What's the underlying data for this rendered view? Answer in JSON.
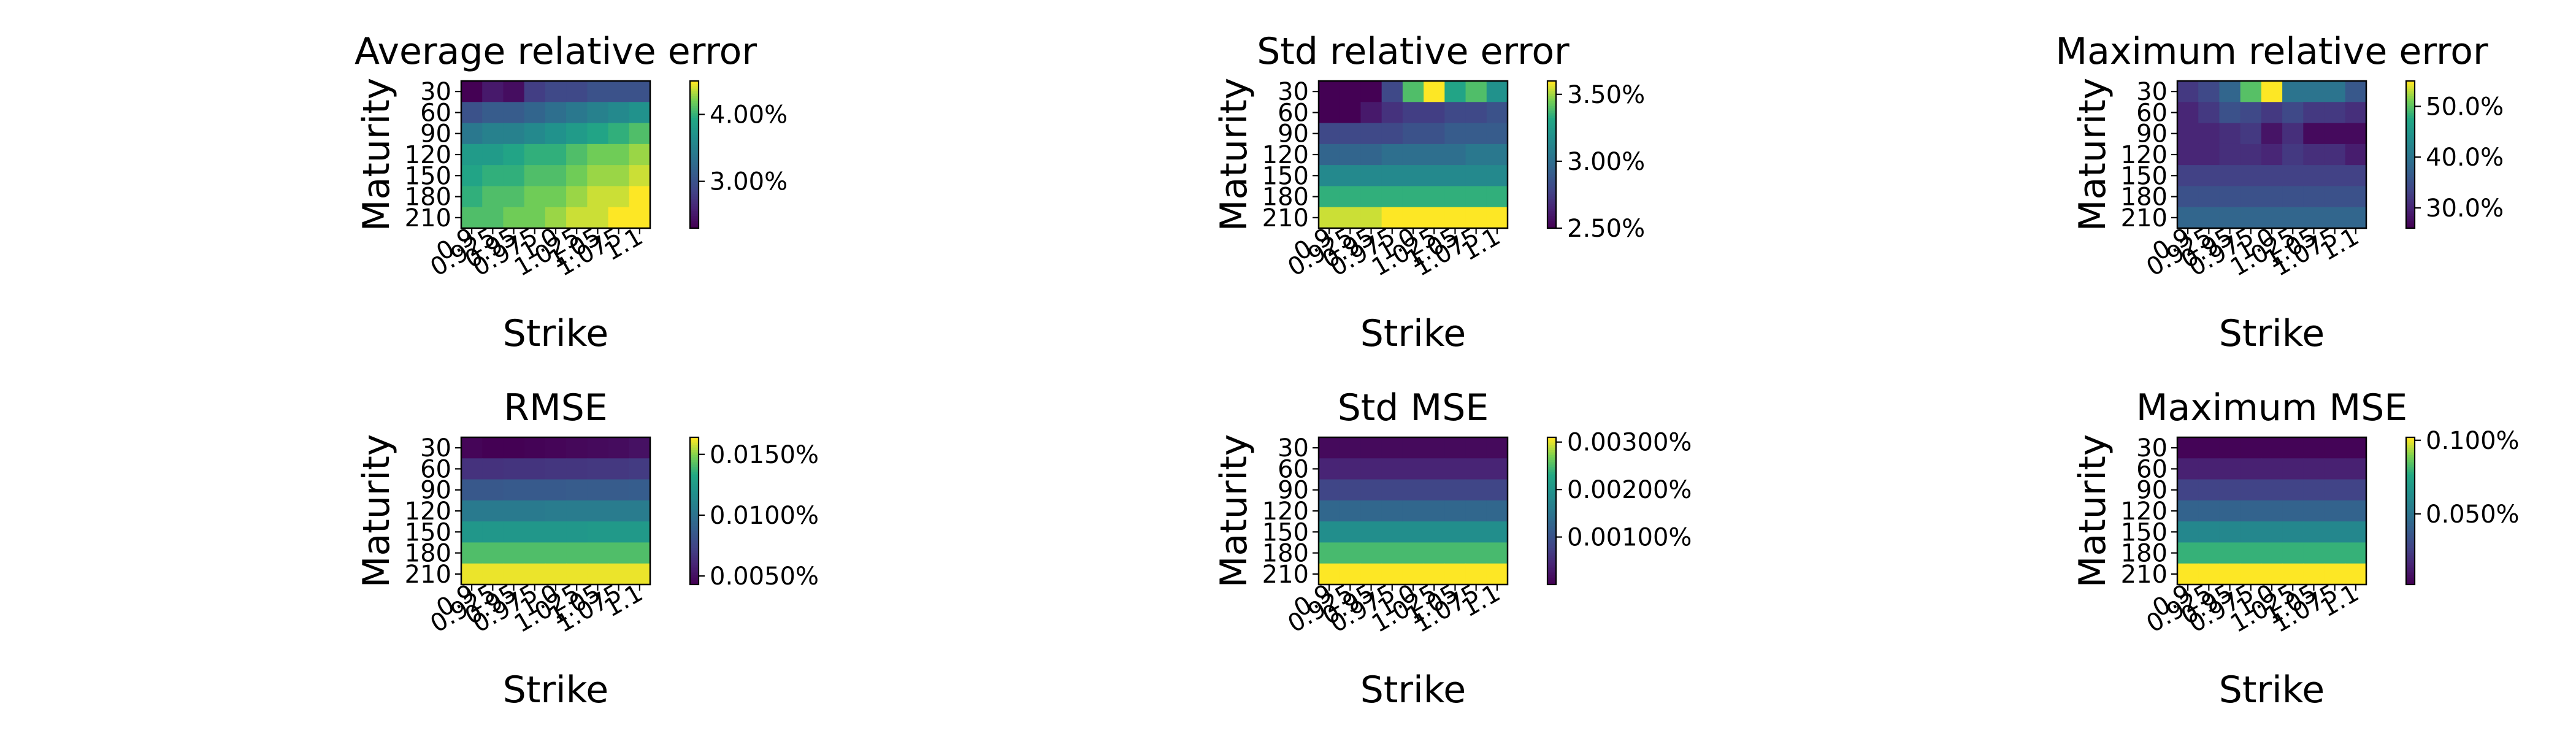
{
  "chart_data": [
    {
      "type": "heatmap",
      "title": "Average relative error",
      "xlabel": "Strike",
      "ylabel": "Maturity",
      "x": [
        "0.9",
        "0.925",
        "0.95",
        "0.975",
        "1.0",
        "1.025",
        "1.05",
        "1.075",
        "1.1"
      ],
      "y": [
        "30",
        "60",
        "90",
        "120",
        "150",
        "180",
        "210"
      ],
      "values": [
        [
          2.3,
          2.5,
          2.4,
          2.8,
          2.9,
          2.9,
          3.0,
          3.0,
          3.0
        ],
        [
          3.0,
          3.1,
          3.1,
          3.2,
          3.3,
          3.4,
          3.5,
          3.6,
          3.7
        ],
        [
          3.4,
          3.5,
          3.5,
          3.6,
          3.7,
          3.8,
          3.9,
          4.0,
          4.1
        ],
        [
          3.8,
          3.8,
          3.9,
          4.0,
          4.0,
          4.1,
          4.2,
          4.2,
          4.3
        ],
        [
          3.9,
          4.0,
          4.0,
          4.1,
          4.1,
          4.2,
          4.3,
          4.3,
          4.4
        ],
        [
          4.0,
          4.1,
          4.1,
          4.2,
          4.2,
          4.3,
          4.4,
          4.4,
          4.5
        ],
        [
          4.1,
          4.1,
          4.2,
          4.2,
          4.3,
          4.4,
          4.4,
          4.5,
          4.5
        ]
      ],
      "colorbar": {
        "range": [
          2.3,
          4.5
        ],
        "ticks": [
          3.0,
          4.0
        ],
        "tick_labels": [
          "3.00%",
          "4.00%"
        ]
      },
      "colormap": "viridis"
    },
    {
      "type": "heatmap",
      "title": "Std relative error",
      "xlabel": "Strike",
      "ylabel": "Maturity",
      "x": [
        "0.9",
        "0.925",
        "0.95",
        "0.975",
        "1.0",
        "1.025",
        "1.05",
        "1.075",
        "1.1"
      ],
      "y": [
        "30",
        "60",
        "90",
        "120",
        "150",
        "180",
        "210"
      ],
      "values": [
        [
          2.45,
          2.45,
          2.5,
          2.8,
          3.4,
          3.6,
          3.3,
          3.4,
          3.2
        ],
        [
          2.5,
          2.5,
          2.6,
          2.7,
          2.75,
          2.75,
          2.8,
          2.8,
          2.85
        ],
        [
          2.8,
          2.8,
          2.8,
          2.8,
          2.85,
          2.85,
          2.9,
          2.9,
          2.9
        ],
        [
          2.95,
          2.95,
          2.95,
          3.0,
          3.0,
          3.0,
          3.0,
          3.05,
          3.05
        ],
        [
          3.15,
          3.15,
          3.15,
          3.15,
          3.15,
          3.15,
          3.15,
          3.15,
          3.15
        ],
        [
          3.35,
          3.35,
          3.35,
          3.35,
          3.35,
          3.35,
          3.35,
          3.35,
          3.35
        ],
        [
          3.55,
          3.55,
          3.55,
          3.6,
          3.6,
          3.6,
          3.6,
          3.6,
          3.6
        ]
      ],
      "colorbar": {
        "range": [
          2.5,
          3.6
        ],
        "ticks": [
          2.5,
          3.0,
          3.5
        ],
        "tick_labels": [
          "2.50%",
          "3.00%",
          "3.50%"
        ]
      },
      "colormap": "viridis"
    },
    {
      "type": "heatmap",
      "title": "Maximum relative error",
      "xlabel": "Strike",
      "ylabel": "Maturity",
      "x": [
        "0.9",
        "0.925",
        "0.95",
        "0.975",
        "1.0",
        "1.025",
        "1.05",
        "1.075",
        "1.1"
      ],
      "y": [
        "30",
        "60",
        "90",
        "120",
        "150",
        "180",
        "210"
      ],
      "values": [
        [
          32,
          34,
          38,
          50,
          55,
          40,
          40,
          40,
          36
        ],
        [
          30,
          32,
          35,
          34,
          32,
          34,
          32,
          32,
          31
        ],
        [
          30,
          30,
          31,
          32,
          28,
          31,
          27,
          27,
          27
        ],
        [
          30,
          30,
          31,
          31,
          30,
          32,
          31,
          31,
          29
        ],
        [
          33,
          33,
          33,
          33,
          33,
          33,
          33,
          33,
          33
        ],
        [
          35,
          35,
          35,
          35,
          35,
          35,
          35,
          35,
          35
        ],
        [
          38,
          38,
          38,
          38,
          38,
          38,
          38,
          38,
          38
        ]
      ],
      "colorbar": {
        "range": [
          26,
          55
        ],
        "ticks": [
          30,
          40,
          50
        ],
        "tick_labels": [
          "30.0%",
          "40.0%",
          "50.0%"
        ]
      },
      "colormap": "viridis"
    },
    {
      "type": "heatmap",
      "title": "RMSE",
      "xlabel": "Strike",
      "ylabel": "Maturity",
      "x": [
        "0.9",
        "0.925",
        "0.95",
        "0.975",
        "1.0",
        "1.025",
        "1.05",
        "1.075",
        "1.1"
      ],
      "y": [
        "30",
        "60",
        "90",
        "120",
        "150",
        "180",
        "210"
      ],
      "values": [
        [
          0.0045,
          0.0043,
          0.0043,
          0.0044,
          0.0045,
          0.0046,
          0.0047,
          0.0048,
          0.005
        ],
        [
          0.0065,
          0.0065,
          0.0066,
          0.0066,
          0.0067,
          0.0067,
          0.0068,
          0.0068,
          0.0069
        ],
        [
          0.0085,
          0.0085,
          0.0086,
          0.0086,
          0.0086,
          0.0087,
          0.0087,
          0.0087,
          0.0088
        ],
        [
          0.0105,
          0.0105,
          0.0105,
          0.0105,
          0.0106,
          0.0106,
          0.0106,
          0.0106,
          0.0106
        ],
        [
          0.0123,
          0.0123,
          0.0123,
          0.0123,
          0.0123,
          0.0123,
          0.0124,
          0.0124,
          0.0124
        ],
        [
          0.0142,
          0.0142,
          0.0142,
          0.0142,
          0.0142,
          0.0142,
          0.0142,
          0.0142,
          0.0142
        ],
        [
          0.0162,
          0.0162,
          0.0162,
          0.0162,
          0.0162,
          0.0162,
          0.0162,
          0.0162,
          0.0162
        ]
      ],
      "colorbar": {
        "range": [
          0.0043,
          0.0164
        ],
        "ticks": [
          0.005,
          0.01,
          0.015
        ],
        "tick_labels": [
          "0.0050%",
          "0.0100%",
          "0.0150%"
        ]
      },
      "colormap": "viridis"
    },
    {
      "type": "heatmap",
      "title": "Std MSE",
      "xlabel": "Strike",
      "ylabel": "Maturity",
      "x": [
        "0.9",
        "0.925",
        "0.95",
        "0.975",
        "1.0",
        "1.025",
        "1.05",
        "1.075",
        "1.1"
      ],
      "y": [
        "30",
        "60",
        "90",
        "120",
        "150",
        "180",
        "210"
      ],
      "values": [
        [
          0.0001,
          0.0001,
          0.0001,
          0.0001,
          0.0001,
          0.0001,
          0.0001,
          0.0001,
          0.0001
        ],
        [
          0.0004,
          0.0004,
          0.0004,
          0.0004,
          0.0004,
          0.0004,
          0.0004,
          0.0004,
          0.0004
        ],
        [
          0.0008,
          0.0008,
          0.0008,
          0.0008,
          0.0008,
          0.0008,
          0.0008,
          0.0008,
          0.0008
        ],
        [
          0.0013,
          0.0013,
          0.0013,
          0.0013,
          0.0013,
          0.0013,
          0.0013,
          0.0013,
          0.0013
        ],
        [
          0.0019,
          0.0019,
          0.0019,
          0.0019,
          0.0019,
          0.0019,
          0.0019,
          0.0019,
          0.0019
        ],
        [
          0.0025,
          0.0025,
          0.0025,
          0.0025,
          0.0025,
          0.0025,
          0.0025,
          0.0025,
          0.0025
        ],
        [
          0.0031,
          0.0031,
          0.0031,
          0.0031,
          0.0031,
          0.0031,
          0.0031,
          0.0031,
          0.0031
        ]
      ],
      "colorbar": {
        "range": [
          0.0,
          0.0031
        ],
        "ticks": [
          0.001,
          0.002,
          0.003
        ],
        "tick_labels": [
          "0.00100%",
          "0.00200%",
          "0.00300%"
        ]
      },
      "colormap": "viridis"
    },
    {
      "type": "heatmap",
      "title": "Maximum MSE",
      "xlabel": "Strike",
      "ylabel": "Maturity",
      "x": [
        "0.9",
        "0.925",
        "0.95",
        "0.975",
        "1.0",
        "1.025",
        "1.05",
        "1.075",
        "1.1"
      ],
      "y": [
        "30",
        "60",
        "90",
        "120",
        "150",
        "180",
        "210"
      ],
      "values": [
        [
          0.003,
          0.003,
          0.003,
          0.003,
          0.003,
          0.003,
          0.003,
          0.003,
          0.003
        ],
        [
          0.014,
          0.014,
          0.014,
          0.014,
          0.014,
          0.014,
          0.014,
          0.014,
          0.014
        ],
        [
          0.027,
          0.027,
          0.027,
          0.027,
          0.027,
          0.027,
          0.027,
          0.027,
          0.027
        ],
        [
          0.042,
          0.042,
          0.042,
          0.042,
          0.042,
          0.042,
          0.042,
          0.042,
          0.042
        ],
        [
          0.06,
          0.06,
          0.06,
          0.06,
          0.06,
          0.06,
          0.06,
          0.06,
          0.06
        ],
        [
          0.08,
          0.08,
          0.08,
          0.08,
          0.08,
          0.08,
          0.08,
          0.08,
          0.08
        ],
        [
          0.102,
          0.102,
          0.102,
          0.102,
          0.102,
          0.102,
          0.102,
          0.102,
          0.102
        ]
      ],
      "colorbar": {
        "range": [
          0.002,
          0.102
        ],
        "ticks": [
          0.05,
          0.1
        ],
        "tick_labels": [
          "0.050%",
          "0.100%"
        ]
      },
      "colormap": "viridis"
    }
  ]
}
